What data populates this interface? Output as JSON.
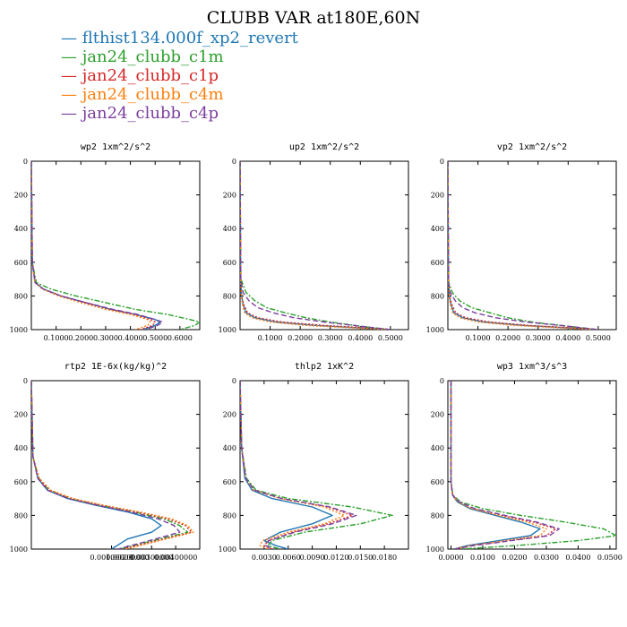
{
  "title": "CLUBB VAR at180E,60N",
  "legend": [
    {
      "name": "flthist134.000f_xp2_revert",
      "color": "#1f77b4",
      "dash": "solid",
      "marker": "—"
    },
    {
      "name": "jan24_clubb_c1m",
      "color": "#2ca02c",
      "dash": "dashdot",
      "marker": "—"
    },
    {
      "name": "jan24_clubb_c1p",
      "color": "#d62728",
      "dash": "dotted",
      "marker": "—"
    },
    {
      "name": "jan24_clubb_c4m",
      "color": "#ff7f0e",
      "dash": "dotted",
      "marker": "—"
    },
    {
      "name": "jan24_clubb_c4p",
      "color": "#7b3fa0",
      "dash": "dashed",
      "marker": "—"
    }
  ],
  "chart_data": [
    {
      "type": "line",
      "title": "wp2  1xm^2/s^2",
      "ylim": [
        1000,
        0
      ],
      "yticks": [
        "0",
        "200",
        "400",
        "600",
        "800",
        "1000"
      ],
      "xlim": [
        0,
        0.68
      ],
      "xticks": [
        0.1,
        0.2,
        0.3,
        0.4,
        0.5,
        0.6
      ],
      "xtick_labels": [
        "0.1000",
        "0.2000",
        "0.3000",
        "0.4000",
        "0.5000",
        "0.6000"
      ],
      "series": [
        {
          "x": [
            0,
            0.004,
            0.015,
            0.05,
            0.12,
            0.22,
            0.32,
            0.42,
            0.5,
            0.52,
            0.5,
            0.45
          ],
          "y": [
            0,
            600,
            720,
            760,
            800,
            840,
            880,
            910,
            940,
            955,
            975,
            1000
          ]
        },
        {
          "x": [
            0,
            0.004,
            0.02,
            0.08,
            0.18,
            0.3,
            0.42,
            0.55,
            0.64,
            0.68,
            0.66,
            0.6
          ],
          "y": [
            0,
            600,
            720,
            760,
            800,
            840,
            880,
            910,
            940,
            955,
            975,
            1000
          ]
        },
        {
          "x": [
            0,
            0.004,
            0.015,
            0.05,
            0.12,
            0.22,
            0.32,
            0.42,
            0.48,
            0.5,
            0.49,
            0.44
          ],
          "y": [
            0,
            600,
            720,
            760,
            800,
            840,
            880,
            910,
            940,
            955,
            975,
            1000
          ]
        },
        {
          "x": [
            0,
            0.004,
            0.014,
            0.045,
            0.11,
            0.2,
            0.3,
            0.4,
            0.47,
            0.48,
            0.47,
            0.42
          ],
          "y": [
            0,
            600,
            720,
            760,
            800,
            840,
            880,
            910,
            940,
            955,
            975,
            1000
          ]
        },
        {
          "x": [
            0,
            0.004,
            0.015,
            0.05,
            0.12,
            0.22,
            0.33,
            0.43,
            0.5,
            0.53,
            0.51,
            0.46
          ],
          "y": [
            0,
            600,
            720,
            760,
            800,
            840,
            880,
            910,
            940,
            955,
            975,
            1000
          ]
        }
      ]
    },
    {
      "type": "line",
      "title": "up2  1xm^2/s^2",
      "ylim": [
        1000,
        0
      ],
      "yticks": [
        "0",
        "200",
        "400",
        "600",
        "800",
        "1000"
      ],
      "xlim": [
        0,
        0.56
      ],
      "xticks": [
        0.1,
        0.2,
        0.3,
        0.4,
        0.5
      ],
      "xtick_labels": [
        "0.1000",
        "0.2000",
        "0.3000",
        "0.4000",
        "0.5000"
      ],
      "series": [
        {
          "x": [
            0,
            0.002,
            0.005,
            0.01,
            0.02,
            0.05,
            0.12,
            0.25,
            0.4,
            0.5
          ],
          "y": [
            0,
            700,
            800,
            850,
            900,
            930,
            955,
            975,
            990,
            1000
          ]
        },
        {
          "x": [
            0,
            0.003,
            0.02,
            0.05,
            0.09,
            0.15,
            0.22,
            0.3,
            0.4,
            0.5
          ],
          "y": [
            0,
            700,
            780,
            830,
            870,
            900,
            930,
            955,
            980,
            1000
          ]
        },
        {
          "x": [
            0,
            0.002,
            0.005,
            0.012,
            0.025,
            0.06,
            0.14,
            0.28,
            0.42,
            0.5
          ],
          "y": [
            0,
            700,
            800,
            850,
            900,
            930,
            955,
            975,
            990,
            1000
          ]
        },
        {
          "x": [
            0,
            0.002,
            0.004,
            0.008,
            0.015,
            0.04,
            0.1,
            0.22,
            0.38,
            0.5
          ],
          "y": [
            0,
            700,
            800,
            850,
            900,
            930,
            955,
            975,
            990,
            1000
          ]
        },
        {
          "x": [
            0,
            0.002,
            0.01,
            0.03,
            0.06,
            0.11,
            0.18,
            0.28,
            0.4,
            0.5
          ],
          "y": [
            0,
            700,
            780,
            830,
            870,
            900,
            930,
            955,
            980,
            1000
          ]
        }
      ]
    },
    {
      "type": "line",
      "title": "vp2  1xm^2/s^2",
      "ylim": [
        1000,
        0
      ],
      "yticks": [
        "0",
        "200",
        "400",
        "600",
        "800",
        "1000"
      ],
      "xlim": [
        0,
        0.56
      ],
      "xticks": [
        0.1,
        0.2,
        0.3,
        0.4,
        0.5
      ],
      "xtick_labels": [
        "0.1000",
        "0.2000",
        "0.3000",
        "0.4000",
        "0.5000"
      ],
      "series": [
        {
          "x": [
            0,
            0.002,
            0.005,
            0.01,
            0.02,
            0.05,
            0.12,
            0.25,
            0.4,
            0.5
          ],
          "y": [
            0,
            720,
            800,
            850,
            900,
            930,
            955,
            975,
            990,
            1000
          ]
        },
        {
          "x": [
            0,
            0.003,
            0.015,
            0.04,
            0.08,
            0.14,
            0.2,
            0.28,
            0.4,
            0.5
          ],
          "y": [
            0,
            720,
            780,
            830,
            870,
            900,
            930,
            955,
            980,
            1000
          ]
        },
        {
          "x": [
            0,
            0.002,
            0.006,
            0.013,
            0.026,
            0.06,
            0.14,
            0.27,
            0.42,
            0.5
          ],
          "y": [
            0,
            720,
            800,
            850,
            900,
            930,
            955,
            975,
            990,
            1000
          ]
        },
        {
          "x": [
            0,
            0.002,
            0.004,
            0.008,
            0.016,
            0.04,
            0.1,
            0.22,
            0.38,
            0.5
          ],
          "y": [
            0,
            720,
            800,
            850,
            900,
            930,
            955,
            975,
            990,
            1000
          ]
        },
        {
          "x": [
            0,
            0.002,
            0.008,
            0.025,
            0.05,
            0.09,
            0.16,
            0.26,
            0.4,
            0.5
          ],
          "y": [
            0,
            720,
            780,
            830,
            870,
            900,
            930,
            955,
            980,
            1000
          ]
        }
      ]
    },
    {
      "type": "line",
      "title": "rtp2  1E-6x(kg/kg)^2",
      "ylim": [
        1000,
        0
      ],
      "yticks": [
        "0",
        "200",
        "400",
        "600",
        "800",
        "1000"
      ],
      "xlim": [
        0,
        2.1e-05
      ],
      "xticks": [
        1e-06,
        2e-06,
        3e-06,
        4e-06,
        5e-06
      ],
      "xtick_labels": [
        "0.000001",
        "0.000002",
        "0.000003",
        "0.000004",
        "0.000005"
      ],
      "tick_label_override": [
        "0.00100000",
        "0.00200000",
        "0.00300000",
        "0.00400000"
      ],
      "tick_label_override_x": [
        1e-05,
        1.2e-05,
        1.5e-05,
        1.8e-05
      ],
      "series": [
        {
          "x": [
            0,
            2e-07,
            8e-07,
            2e-06,
            4.5e-06,
            8e-06,
            1.2e-05,
            1.5e-05,
            1.62e-05,
            1.5e-05,
            1.2e-05,
            1e-05
          ],
          "y": [
            0,
            450,
            580,
            650,
            700,
            740,
            780,
            820,
            860,
            900,
            940,
            1000
          ]
        },
        {
          "x": [
            0,
            2e-07,
            9e-07,
            2.2e-06,
            4.8e-06,
            8.5e-06,
            1.28e-05,
            1.65e-05,
            1.85e-05,
            1.95e-05,
            1.6e-05,
            1.1e-05
          ],
          "y": [
            0,
            450,
            580,
            650,
            700,
            740,
            780,
            820,
            860,
            900,
            940,
            1000
          ]
        },
        {
          "x": [
            0,
            2e-07,
            9e-07,
            2.3e-06,
            5e-06,
            8.8e-06,
            1.32e-05,
            1.7e-05,
            1.92e-05,
            2e-05,
            1.65e-05,
            1.15e-05
          ],
          "y": [
            0,
            450,
            580,
            650,
            700,
            740,
            780,
            820,
            860,
            900,
            940,
            1000
          ]
        },
        {
          "x": [
            0,
            2e-07,
            1e-06,
            2.4e-06,
            5.2e-06,
            9e-06,
            1.35e-05,
            1.75e-05,
            1.95e-05,
            2.02e-05,
            1.68e-05,
            1.18e-05
          ],
          "y": [
            0,
            450,
            580,
            650,
            700,
            740,
            780,
            820,
            860,
            900,
            940,
            1000
          ]
        },
        {
          "x": [
            0,
            2e-07,
            8e-07,
            2e-06,
            4.6e-06,
            8.2e-06,
            1.24e-05,
            1.58e-05,
            1.78e-05,
            1.85e-05,
            1.55e-05,
            1.08e-05
          ],
          "y": [
            0,
            450,
            580,
            650,
            700,
            740,
            780,
            820,
            860,
            900,
            940,
            1000
          ]
        }
      ]
    },
    {
      "type": "line",
      "title": "thlp2  1xK^2",
      "ylim": [
        1000,
        0
      ],
      "yticks": [
        "0",
        "200",
        "400",
        "600",
        "800",
        "1000"
      ],
      "xlim": [
        0,
        0.021
      ],
      "xticks": [
        0.003,
        0.006,
        0.009,
        0.012,
        0.015,
        0.018
      ],
      "xtick_labels": [
        "0.0030",
        "0.0060",
        "0.0090",
        "0.0120",
        "0.0150",
        "0.0180"
      ],
      "series": [
        {
          "x": [
            0,
            0.0002,
            0.0006,
            0.0015,
            0.004,
            0.009,
            0.0115,
            0.009,
            0.005,
            0.003,
            0.0045,
            0.006
          ],
          "y": [
            0,
            400,
            580,
            650,
            700,
            750,
            800,
            850,
            900,
            950,
            980,
            1000
          ]
        },
        {
          "x": [
            0,
            0.0002,
            0.0008,
            0.002,
            0.006,
            0.014,
            0.019,
            0.015,
            0.008,
            0.004,
            0.0035,
            0.005
          ],
          "y": [
            0,
            400,
            580,
            650,
            700,
            750,
            800,
            850,
            900,
            950,
            980,
            1000
          ]
        },
        {
          "x": [
            0,
            0.0002,
            0.0007,
            0.0017,
            0.005,
            0.011,
            0.014,
            0.011,
            0.0065,
            0.0035,
            0.003,
            0.004
          ],
          "y": [
            0,
            400,
            580,
            650,
            700,
            750,
            800,
            850,
            900,
            950,
            980,
            1000
          ]
        },
        {
          "x": [
            0,
            0.0002,
            0.0007,
            0.0017,
            0.005,
            0.0105,
            0.013,
            0.0105,
            0.006,
            0.0028,
            0.0025,
            0.0035
          ],
          "y": [
            0,
            400,
            580,
            650,
            700,
            750,
            800,
            850,
            900,
            950,
            980,
            1000
          ]
        },
        {
          "x": [
            0,
            0.0002,
            0.0007,
            0.0018,
            0.0052,
            0.0112,
            0.0145,
            0.0115,
            0.0068,
            0.0036,
            0.0032,
            0.0042
          ],
          "y": [
            0,
            400,
            580,
            650,
            700,
            750,
            800,
            850,
            900,
            950,
            980,
            1000
          ]
        }
      ]
    },
    {
      "type": "line",
      "title": "wp3  1xm^3/s^3",
      "ylim": [
        1000,
        0
      ],
      "yticks": [
        "0",
        "200",
        "400",
        "600",
        "800",
        "1000"
      ],
      "xlim": [
        -0.001,
        0.052
      ],
      "xticks": [
        0,
        0.01,
        0.02,
        0.03,
        0.04,
        0.05
      ],
      "xtick_labels": [
        "0.0000",
        "0.0100",
        "0.0200",
        "0.0300",
        "0.0400",
        "0.0500"
      ],
      "series": [
        {
          "x": [
            0,
            0,
            0.0005,
            0.002,
            0.006,
            0.014,
            0.022,
            0.028,
            0.025,
            0.015,
            0.005,
            0.001
          ],
          "y": [
            0,
            600,
            680,
            720,
            760,
            800,
            840,
            880,
            920,
            950,
            980,
            1000
          ]
        },
        {
          "x": [
            0,
            0,
            0.0006,
            0.003,
            0.01,
            0.022,
            0.036,
            0.048,
            0.052,
            0.04,
            0.02,
            0.003
          ],
          "y": [
            0,
            600,
            680,
            720,
            760,
            800,
            840,
            880,
            920,
            950,
            980,
            1000
          ]
        },
        {
          "x": [
            0,
            0,
            0.0005,
            0.0025,
            0.007,
            0.016,
            0.026,
            0.033,
            0.03,
            0.018,
            0.006,
            0.001
          ],
          "y": [
            0,
            600,
            680,
            720,
            760,
            800,
            840,
            880,
            920,
            950,
            980,
            1000
          ]
        },
        {
          "x": [
            0,
            0,
            0.0005,
            0.0022,
            0.0065,
            0.015,
            0.024,
            0.03,
            0.028,
            0.017,
            0.006,
            0.001
          ],
          "y": [
            0,
            600,
            680,
            720,
            760,
            800,
            840,
            880,
            920,
            950,
            980,
            1000
          ]
        },
        {
          "x": [
            0,
            0,
            0.0005,
            0.0026,
            0.0075,
            0.017,
            0.027,
            0.034,
            0.031,
            0.019,
            0.007,
            0.001
          ],
          "y": [
            0,
            600,
            680,
            720,
            760,
            800,
            840,
            880,
            920,
            950,
            980,
            1000
          ]
        }
      ]
    }
  ]
}
